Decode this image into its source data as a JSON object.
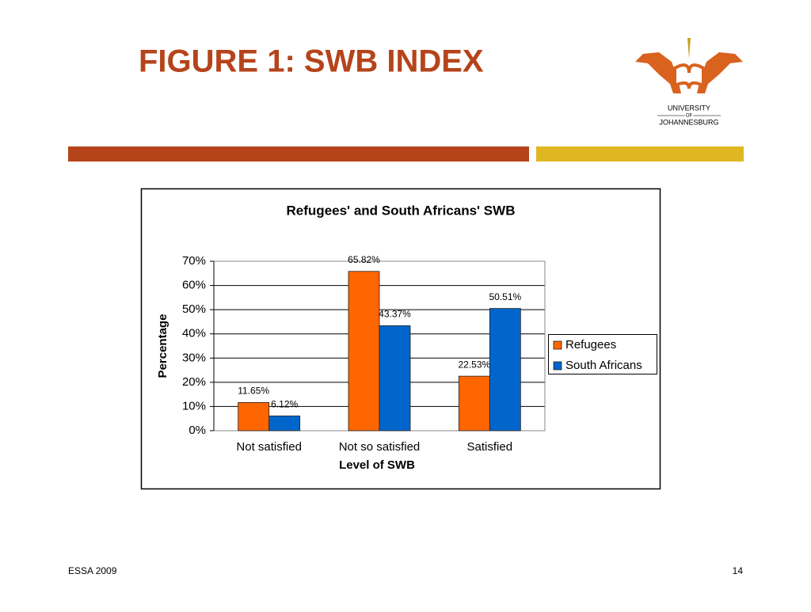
{
  "slide": {
    "title": "FIGURE 1: SWB INDEX",
    "logo": [
      "UNIVERSITY",
      "OF",
      "JOHANNESBURG"
    ],
    "footer": "ESSA 2009",
    "page_number": "14"
  },
  "chart_data": {
    "type": "bar",
    "title": "Refugees' and South Africans' SWB",
    "x_label": "Level of SWB",
    "y_label": "Percentage",
    "categories": [
      "Not satisfied",
      "Not so satisfied",
      "Satisfied"
    ],
    "series": [
      {
        "name": "Refugees",
        "color": "#ff6600",
        "values": [
          11.65,
          65.82,
          22.53
        ],
        "value_labels": [
          "11.65%",
          "65.82%",
          "22.53%"
        ]
      },
      {
        "name": "South Africans",
        "color": "#0066cc",
        "values": [
          6.12,
          43.37,
          50.51
        ],
        "value_labels": [
          "6.12%",
          "43.37%",
          "50.51%"
        ]
      }
    ],
    "ylim": [
      0,
      70
    ],
    "yticks": [
      {
        "value": 0,
        "label": "0%"
      },
      {
        "value": 10,
        "label": "10%"
      },
      {
        "value": 20,
        "label": "20%"
      },
      {
        "value": 30,
        "label": "30%"
      },
      {
        "value": 40,
        "label": "40%"
      },
      {
        "value": 50,
        "label": "50%"
      },
      {
        "value": 60,
        "label": "60%"
      },
      {
        "value": 70,
        "label": "70%"
      }
    ],
    "grid": true,
    "legend": "right"
  }
}
